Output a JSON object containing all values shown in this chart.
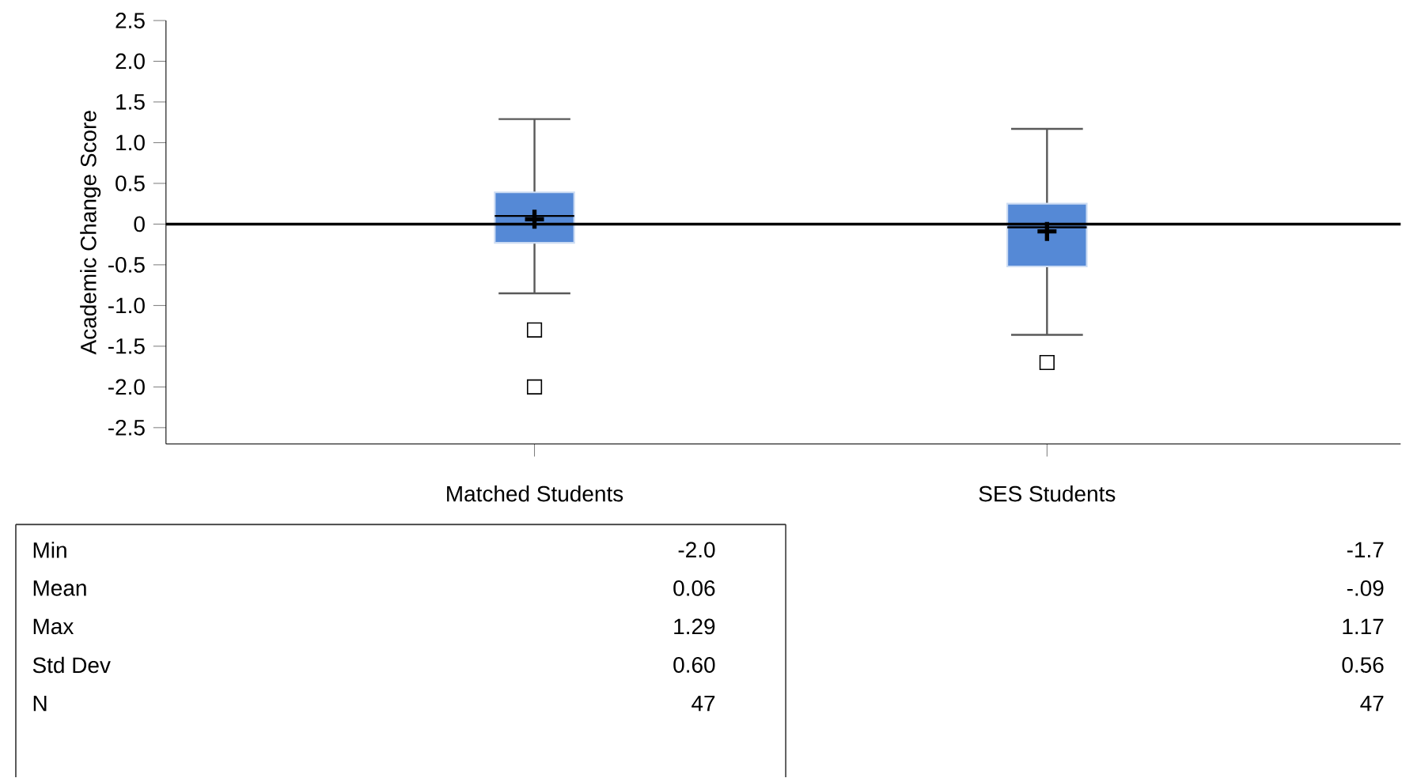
{
  "chart_data": {
    "type": "box",
    "ylabel": "Academic Change Score",
    "categories": [
      "Matched Students",
      "SES Students"
    ],
    "boxes": [
      {
        "low": -0.85,
        "q1": -0.23,
        "median": 0.1,
        "q3": 0.39,
        "high": 1.29,
        "mean": 0.06,
        "outliers": [
          -1.3,
          -2.0
        ]
      },
      {
        "low": -1.36,
        "q1": -0.52,
        "median": -0.04,
        "q3": 0.25,
        "high": 1.17,
        "mean": -0.09,
        "outliers": [
          -1.7
        ]
      }
    ],
    "color": "#5589d6",
    "marker": "square",
    "ylim": [
      -2.7,
      2.5
    ],
    "yticks": [
      -2.5,
      {
        "value": -2,
        "label": "-2.0"
      },
      -1.5,
      {
        "value": -1,
        "label": "-1.0"
      },
      -0.5,
      0,
      0.5,
      {
        "value": 1,
        "label": "1.0"
      },
      1.5,
      {
        "value": 2,
        "label": "2.0"
      },
      2.5
    ],
    "ref_lines": [
      {
        "axis": "y",
        "value": 0,
        "color": "#000000"
      }
    ],
    "annotations": [
      "Min",
      "-2.0",
      "-1.7",
      "Mean",
      "0.06",
      "-.09",
      "Max",
      "1.29",
      "1.17",
      "Std Dev",
      "0.60",
      "0.56",
      "N",
      "47",
      "47"
    ]
  }
}
